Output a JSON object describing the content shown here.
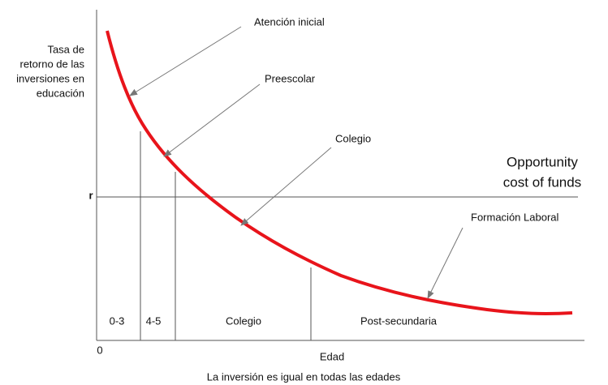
{
  "y_axis_label": [
    "Tasa de",
    "retorno de las",
    "inversiones en",
    "educación"
  ],
  "origin_label": "0",
  "rate_label": "r",
  "opportunity_cost": [
    "Opportunity",
    "cost of funds"
  ],
  "segments": [
    "0-3",
    "4-5",
    "Colegio",
    "Post-secundaria"
  ],
  "x_axis_label": "Edad",
  "caption": "La inversión es igual en todas las edades",
  "annotations": [
    "Atención inicial",
    "Preescolar",
    "Colegio",
    "Formación Laboral"
  ]
}
